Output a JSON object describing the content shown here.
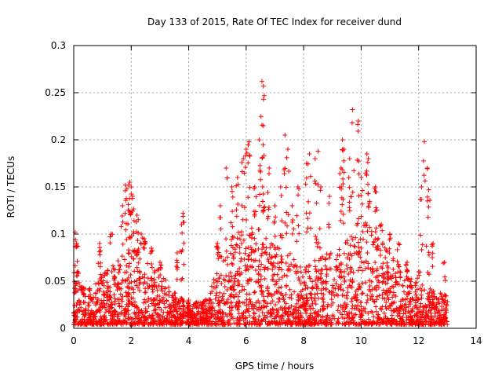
{
  "chart_data": {
    "type": "scatter",
    "title": "Day 133 of 2015, Rate Of TEC Index for receiver dund",
    "xlabel": "GPS time / hours",
    "ylabel": "ROTI / TECUs",
    "xlim": [
      0,
      14
    ],
    "ylim": [
      0,
      0.3
    ],
    "xticks": [
      0,
      2,
      4,
      6,
      8,
      10,
      12,
      14
    ],
    "yticks": [
      0,
      0.05,
      0.1,
      0.15,
      0.2,
      0.25,
      0.3
    ],
    "xtick_labels": [
      "0",
      "2",
      "4",
      "6",
      "8",
      "10",
      "12",
      "14"
    ],
    "ytick_labels": [
      "0",
      "0.05",
      "0.1",
      "0.15",
      "0.2",
      "0.25",
      "0.3"
    ],
    "grid": true,
    "marker": "+",
    "color": "#ff0000",
    "data_range_hours": [
      0,
      13
    ],
    "series": [
      {
        "name": "ROTI",
        "points": [
          [
            0.05,
            0.102
          ],
          [
            0.1,
            0.09
          ],
          [
            0.15,
            0.06
          ],
          [
            0.3,
            0.04
          ],
          [
            0.9,
            0.09
          ],
          [
            1.3,
            0.1
          ],
          [
            1.7,
            0.13
          ],
          [
            1.8,
            0.152
          ],
          [
            1.85,
            0.148
          ],
          [
            1.95,
            0.155
          ],
          [
            2.0,
            0.15
          ],
          [
            2.05,
            0.14
          ],
          [
            2.2,
            0.12
          ],
          [
            2.35,
            0.1
          ],
          [
            2.45,
            0.095
          ],
          [
            2.7,
            0.085
          ],
          [
            3.0,
            0.07
          ],
          [
            3.6,
            0.08
          ],
          [
            3.75,
            0.11
          ],
          [
            3.8,
            0.122
          ],
          [
            4.0,
            0.03
          ],
          [
            4.5,
            0.02
          ],
          [
            5.0,
            0.09
          ],
          [
            5.1,
            0.13
          ],
          [
            5.3,
            0.17
          ],
          [
            5.5,
            0.15
          ],
          [
            5.7,
            0.16
          ],
          [
            5.9,
            0.18
          ],
          [
            6.0,
            0.19
          ],
          [
            6.1,
            0.198
          ],
          [
            6.3,
            0.15
          ],
          [
            6.45,
            0.2
          ],
          [
            6.55,
            0.262
          ],
          [
            6.6,
            0.257
          ],
          [
            6.6,
            0.243
          ],
          [
            6.6,
            0.215
          ],
          [
            6.8,
            0.17
          ],
          [
            7.0,
            0.13
          ],
          [
            7.2,
            0.15
          ],
          [
            7.35,
            0.205
          ],
          [
            7.45,
            0.19
          ],
          [
            7.6,
            0.13
          ],
          [
            7.8,
            0.15
          ],
          [
            8.1,
            0.175
          ],
          [
            8.2,
            0.185
          ],
          [
            8.4,
            0.18
          ],
          [
            8.5,
            0.188
          ],
          [
            8.6,
            0.15
          ],
          [
            8.9,
            0.14
          ],
          [
            9.3,
            0.17
          ],
          [
            9.35,
            0.2
          ],
          [
            9.4,
            0.19
          ],
          [
            9.6,
            0.18
          ],
          [
            9.7,
            0.232
          ],
          [
            9.9,
            0.22
          ],
          [
            10.0,
            0.16
          ],
          [
            10.2,
            0.185
          ],
          [
            10.25,
            0.18
          ],
          [
            10.5,
            0.15
          ],
          [
            10.7,
            0.11
          ],
          [
            11.0,
            0.1
          ],
          [
            11.3,
            0.09
          ],
          [
            11.6,
            0.07
          ],
          [
            12.0,
            0.06
          ],
          [
            12.1,
            0.15
          ],
          [
            12.2,
            0.198
          ],
          [
            12.3,
            0.17
          ],
          [
            12.35,
            0.147
          ],
          [
            12.5,
            0.09
          ],
          [
            12.9,
            0.07
          ]
        ],
        "envelope": {
          "description": "upper envelope of the dense scatter cloud; the bulk of points fill from about 0.005 up to this level",
          "x": [
            0,
            0.5,
            1,
            1.5,
            2,
            2.5,
            3,
            3.5,
            4,
            4.5,
            5,
            5.5,
            6,
            6.5,
            7,
            7.5,
            8,
            8.5,
            9,
            9.5,
            10,
            10.5,
            11,
            11.5,
            12,
            12.5,
            13
          ],
          "y": [
            0.05,
            0.04,
            0.06,
            0.07,
            0.09,
            0.08,
            0.06,
            0.04,
            0.025,
            0.03,
            0.06,
            0.1,
            0.12,
            0.11,
            0.09,
            0.08,
            0.07,
            0.075,
            0.09,
            0.1,
            0.12,
            0.11,
            0.08,
            0.06,
            0.05,
            0.04,
            0.035
          ]
        }
      }
    ]
  }
}
